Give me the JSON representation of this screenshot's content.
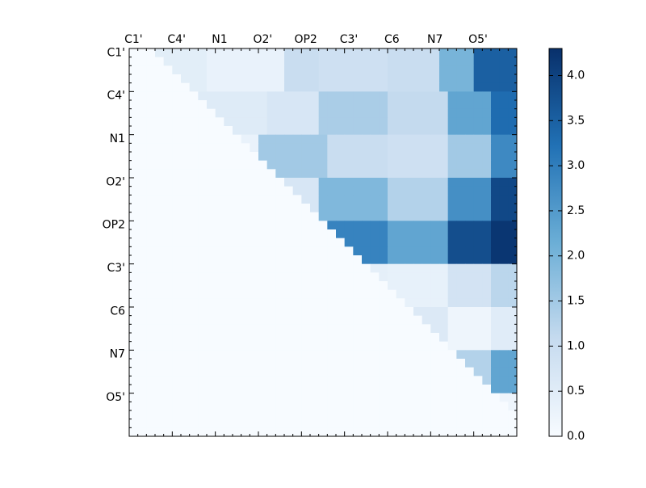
{
  "chart_data": {
    "type": "heatmap",
    "title": "",
    "xlabel": "",
    "ylabel": "",
    "n_cells": 45,
    "row_tick_labels": [
      "C1'",
      "C4'",
      "N1",
      "O2'",
      "OP2",
      "C3'",
      "C6",
      "N7",
      "O5'"
    ],
    "col_tick_labels": [
      "C1'",
      "C4'",
      "N1",
      "O2'",
      "OP2",
      "C3'",
      "C6",
      "N7",
      "O5'"
    ],
    "label_every_n_cells": 5,
    "colormap": "Blues",
    "colors": {
      "low": "#f7fbff",
      "mid_low": "#c6dbef",
      "mid": "#6baed6",
      "mid_high": "#2171b5",
      "high": "#08306b",
      "axis": "#000000"
    },
    "vmin": 0.0,
    "vmax": 4.3,
    "colorbar": {
      "ticks": [
        0.0,
        0.5,
        1.0,
        1.5,
        2.0,
        2.5,
        3.0,
        3.5,
        4.0
      ],
      "tick_labels": [
        "0.0",
        "0.5",
        "1.0",
        "1.5",
        "2.0",
        "2.5",
        "3.0",
        "3.5",
        "4.0"
      ]
    },
    "upper_triangle_only": true,
    "regions": [
      {
        "rows": [
          0,
          5
        ],
        "cols": [
          3,
          9
        ],
        "value": 0.45
      },
      {
        "rows": [
          0,
          5
        ],
        "cols": [
          9,
          18
        ],
        "value": 0.3
      },
      {
        "rows": [
          0,
          5
        ],
        "cols": [
          18,
          22
        ],
        "value": 1.0
      },
      {
        "rows": [
          0,
          5
        ],
        "cols": [
          22,
          30
        ],
        "value": 0.9
      },
      {
        "rows": [
          0,
          5
        ],
        "cols": [
          30,
          36
        ],
        "value": 1.0
      },
      {
        "rows": [
          0,
          5
        ],
        "cols": [
          36,
          40
        ],
        "value": 2.0
      },
      {
        "rows": [
          0,
          5
        ],
        "cols": [
          40,
          45
        ],
        "value": 3.5
      },
      {
        "rows": [
          5,
          10
        ],
        "cols": [
          8,
          16
        ],
        "value": 0.55
      },
      {
        "rows": [
          5,
          10
        ],
        "cols": [
          16,
          22
        ],
        "value": 0.7
      },
      {
        "rows": [
          5,
          10
        ],
        "cols": [
          22,
          30
        ],
        "value": 1.4
      },
      {
        "rows": [
          5,
          10
        ],
        "cols": [
          30,
          37
        ],
        "value": 1.1
      },
      {
        "rows": [
          5,
          10
        ],
        "cols": [
          37,
          42
        ],
        "value": 2.3
      },
      {
        "rows": [
          5,
          10
        ],
        "cols": [
          42,
          45
        ],
        "value": 3.3
      },
      {
        "rows": [
          10,
          15
        ],
        "cols": [
          13,
          17
        ],
        "value": 0.3
      },
      {
        "rows": [
          10,
          15
        ],
        "cols": [
          15,
          23
        ],
        "value": 1.5
      },
      {
        "rows": [
          10,
          15
        ],
        "cols": [
          23,
          30
        ],
        "value": 1.0
      },
      {
        "rows": [
          10,
          15
        ],
        "cols": [
          30,
          37
        ],
        "value": 0.9
      },
      {
        "rows": [
          10,
          15
        ],
        "cols": [
          37,
          42
        ],
        "value": 1.5
      },
      {
        "rows": [
          10,
          15
        ],
        "cols": [
          42,
          45
        ],
        "value": 2.8
      },
      {
        "rows": [
          15,
          20
        ],
        "cols": [
          18,
          22
        ],
        "value": 0.7
      },
      {
        "rows": [
          15,
          20
        ],
        "cols": [
          22,
          30
        ],
        "value": 1.9
      },
      {
        "rows": [
          15,
          20
        ],
        "cols": [
          30,
          37
        ],
        "value": 1.3
      },
      {
        "rows": [
          15,
          20
        ],
        "cols": [
          37,
          42
        ],
        "value": 2.7
      },
      {
        "rows": [
          15,
          20
        ],
        "cols": [
          42,
          45
        ],
        "value": 3.9
      },
      {
        "rows": [
          20,
          25
        ],
        "cols": [
          22,
          30
        ],
        "value": 2.9
      },
      {
        "rows": [
          20,
          25
        ],
        "cols": [
          30,
          37
        ],
        "value": 2.3
      },
      {
        "rows": [
          20,
          25
        ],
        "cols": [
          37,
          42
        ],
        "value": 3.8
      },
      {
        "rows": [
          20,
          25
        ],
        "cols": [
          42,
          45
        ],
        "value": 4.2
      },
      {
        "rows": [
          25,
          30
        ],
        "cols": [
          27,
          30
        ],
        "value": 0.4
      },
      {
        "rows": [
          25,
          30
        ],
        "cols": [
          30,
          37
        ],
        "value": 0.35
      },
      {
        "rows": [
          25,
          30
        ],
        "cols": [
          37,
          42
        ],
        "value": 0.8
      },
      {
        "rows": [
          25,
          30
        ],
        "cols": [
          42,
          45
        ],
        "value": 1.2
      },
      {
        "rows": [
          30,
          35
        ],
        "cols": [
          32,
          37
        ],
        "value": 0.6
      },
      {
        "rows": [
          30,
          35
        ],
        "cols": [
          37,
          42
        ],
        "value": 0.2
      },
      {
        "rows": [
          30,
          35
        ],
        "cols": [
          42,
          45
        ],
        "value": 0.5
      },
      {
        "rows": [
          35,
          40
        ],
        "cols": [
          37,
          42
        ],
        "value": 1.3
      },
      {
        "rows": [
          35,
          40
        ],
        "cols": [
          42,
          45
        ],
        "value": 2.3
      },
      {
        "rows": [
          40,
          45
        ],
        "cols": [
          41,
          45
        ],
        "value": 0.2
      }
    ]
  }
}
